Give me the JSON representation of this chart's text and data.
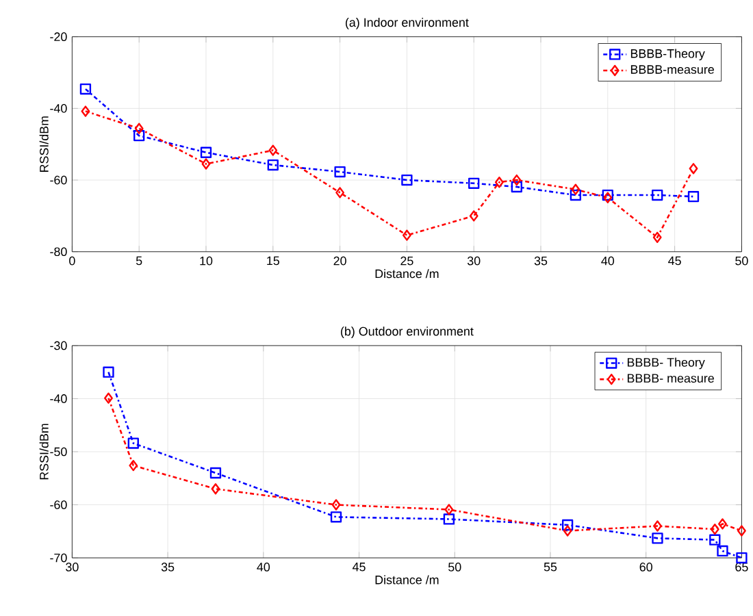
{
  "chart_data": [
    {
      "type": "line",
      "title": "(a) Indoor environment",
      "xlabel": "Distance /m",
      "ylabel": "RSSI/dBm",
      "xlim": [
        0,
        50
      ],
      "ylim": [
        -80,
        -20
      ],
      "xticks": [
        0,
        5,
        10,
        15,
        20,
        25,
        30,
        35,
        40,
        45,
        50
      ],
      "yticks": [
        -80,
        -60,
        -40,
        -20
      ],
      "grid": true,
      "legend": "top right",
      "line_style": "dashed",
      "series": [
        {
          "name": "BBBB-Theory",
          "color": "#0000ff",
          "marker": "square",
          "x": [
            1,
            5,
            10,
            15,
            20,
            25,
            30,
            33.2,
            37.6,
            40,
            43.7,
            46.4
          ],
          "values": [
            -34.6,
            -47.6,
            -52.3,
            -55.8,
            -57.7,
            -60,
            -60.9,
            -61.9,
            -64.2,
            -64.2,
            -64.2,
            -64.6
          ]
        },
        {
          "name": "BBBB-measure",
          "color": "#ff0000",
          "marker": "diamond",
          "x": [
            1,
            5,
            10,
            15,
            20,
            25,
            30,
            31.9,
            33.2,
            37.6,
            40,
            43.7,
            46.4
          ],
          "values": [
            -40.8,
            -45.6,
            -55.5,
            -51.7,
            -63.5,
            -75.4,
            -70,
            -60.6,
            -60,
            -62.6,
            -64.9,
            -76,
            -56.8
          ]
        }
      ]
    },
    {
      "type": "line",
      "title": "(b) Outdoor environment",
      "xlabel": "Distance /m",
      "ylabel": "RSSI/dBm",
      "xlim": [
        30,
        65
      ],
      "ylim": [
        -70,
        -30
      ],
      "xticks": [
        30,
        35,
        40,
        45,
        50,
        55,
        60,
        65
      ],
      "yticks": [
        -70,
        -60,
        -50,
        -40,
        -30
      ],
      "grid": true,
      "legend": "top right",
      "line_style": "dashed",
      "series": [
        {
          "name": "BBBB- Theory",
          "color": "#0000ff",
          "marker": "square",
          "x": [
            31.9,
            33.2,
            37.5,
            43.8,
            49.7,
            55.9,
            60.6,
            63.6,
            64.0,
            65
          ],
          "values": [
            -35,
            -48.4,
            -54,
            -62.3,
            -62.7,
            -63.8,
            -66.3,
            -66.6,
            -68.7,
            -70
          ]
        },
        {
          "name": "BBBB- measure",
          "color": "#ff0000",
          "marker": "diamond",
          "x": [
            31.9,
            33.2,
            37.5,
            43.8,
            49.7,
            55.9,
            60.6,
            63.6,
            64.0,
            65
          ],
          "values": [
            -39.9,
            -52.6,
            -57,
            -60,
            -60.9,
            -64.9,
            -64,
            -64.6,
            -63.6,
            -64.9
          ]
        }
      ]
    }
  ]
}
